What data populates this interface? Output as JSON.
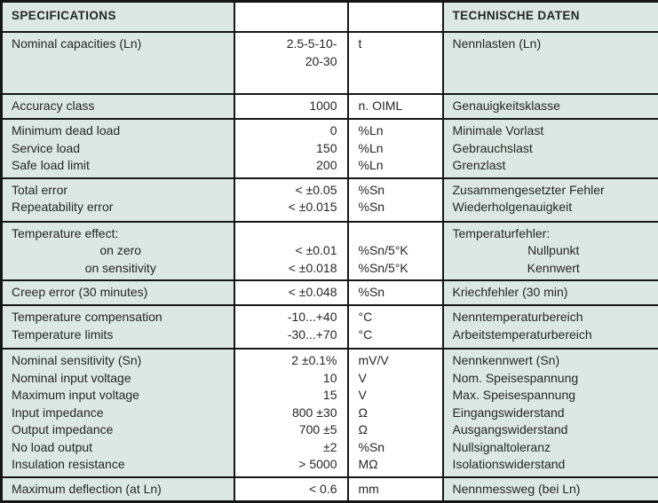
{
  "table": {
    "header": {
      "left": "SPECIFICATIONS",
      "right": "TECHNISCHE DATEN"
    },
    "colors": {
      "tint": "#dce8e3",
      "cell_white": "#ffffff",
      "border": "#161616",
      "text": "#262626"
    },
    "sections": [
      {
        "h": 70,
        "labels": [
          "Nominal capacities (Ln)"
        ],
        "values": [
          "2.5-5-10-",
          "20-30"
        ],
        "units": [
          "t"
        ],
        "german": [
          "Nennlasten (Ln)"
        ]
      },
      {
        "h": 28,
        "labels": [
          "Accuracy class"
        ],
        "values": [
          "1000"
        ],
        "units": [
          "n. OIML"
        ],
        "german": [
          "Genauigkeitsklasse"
        ]
      },
      {
        "h": 66,
        "labels": [
          "Minimum dead load",
          "Service load",
          "Safe load limit"
        ],
        "values": [
          "0",
          "150",
          "200"
        ],
        "units": [
          "%Ln",
          "%Ln",
          "%Ln"
        ],
        "german": [
          "Minimale Vorlast",
          "Gebrauchslast",
          "Grenzlast"
        ]
      },
      {
        "h": 49,
        "labels": [
          "Total error",
          "Repeatability error"
        ],
        "values": [
          "< ±0.05",
          "< ±0.015"
        ],
        "units": [
          "%Sn",
          "%Sn"
        ],
        "german": [
          "Zusammengesetzter Fehler",
          "Wiederholgenauigkeit"
        ]
      },
      {
        "h": 64,
        "labels": [
          "Temperature effect:",
          {
            "t": "on zero",
            "c": true
          },
          {
            "t": "on sensitivity",
            "c": true
          }
        ],
        "values": [
          "",
          "< ±0.01",
          "< ±0.018"
        ],
        "units": [
          "",
          "%Sn/5°K",
          "%Sn/5°K"
        ],
        "german": [
          "Temperaturfehler:",
          {
            "t": "Nullpunkt",
            "c": true
          },
          {
            "t": "Kennwert",
            "c": true
          }
        ]
      },
      {
        "h": 28,
        "labels": [
          "Creep error (30 minutes)"
        ],
        "values": [
          "< ±0.048"
        ],
        "units": [
          "%Sn"
        ],
        "german": [
          "Kriechfehler (30 min)"
        ]
      },
      {
        "h": 49,
        "labels": [
          "Temperature compensation",
          "Temperature limits"
        ],
        "values": [
          "-10...+40",
          "-30...+70"
        ],
        "units": [
          "°C",
          "°C"
        ],
        "german": [
          "Nenntemperaturbereich",
          "Arbeitstemperaturbereich"
        ]
      },
      {
        "h": 137,
        "labels": [
          "Nominal sensitivity (Sn)",
          "Nominal input voltage",
          "Maximum input voltage",
          "Input impedance",
          "Output impedance",
          "No load output",
          "Insulation resistance"
        ],
        "values": [
          "2 ±0.1%",
          "10",
          "15",
          "800 ±30",
          "700 ±5",
          "±2",
          "> 5000"
        ],
        "units": [
          "mV/V",
          "V",
          "V",
          "Ω",
          "Ω",
          "%Sn",
          "MΩ"
        ],
        "german": [
          "Nennkennwert (Sn)",
          "Nom. Speisespannung",
          "Max. Speisespannung",
          "Eingangswiderstand",
          "Ausgangswiderstand",
          "Nullsignaltoleranz",
          "Isolationswiderstand"
        ]
      },
      {
        "h": 28,
        "labels": [
          "Maximum deflection (at Ln)"
        ],
        "values": [
          "< 0.6"
        ],
        "units": [
          "mm"
        ],
        "german": [
          "Nennmessweg (bei Ln)"
        ]
      }
    ]
  }
}
